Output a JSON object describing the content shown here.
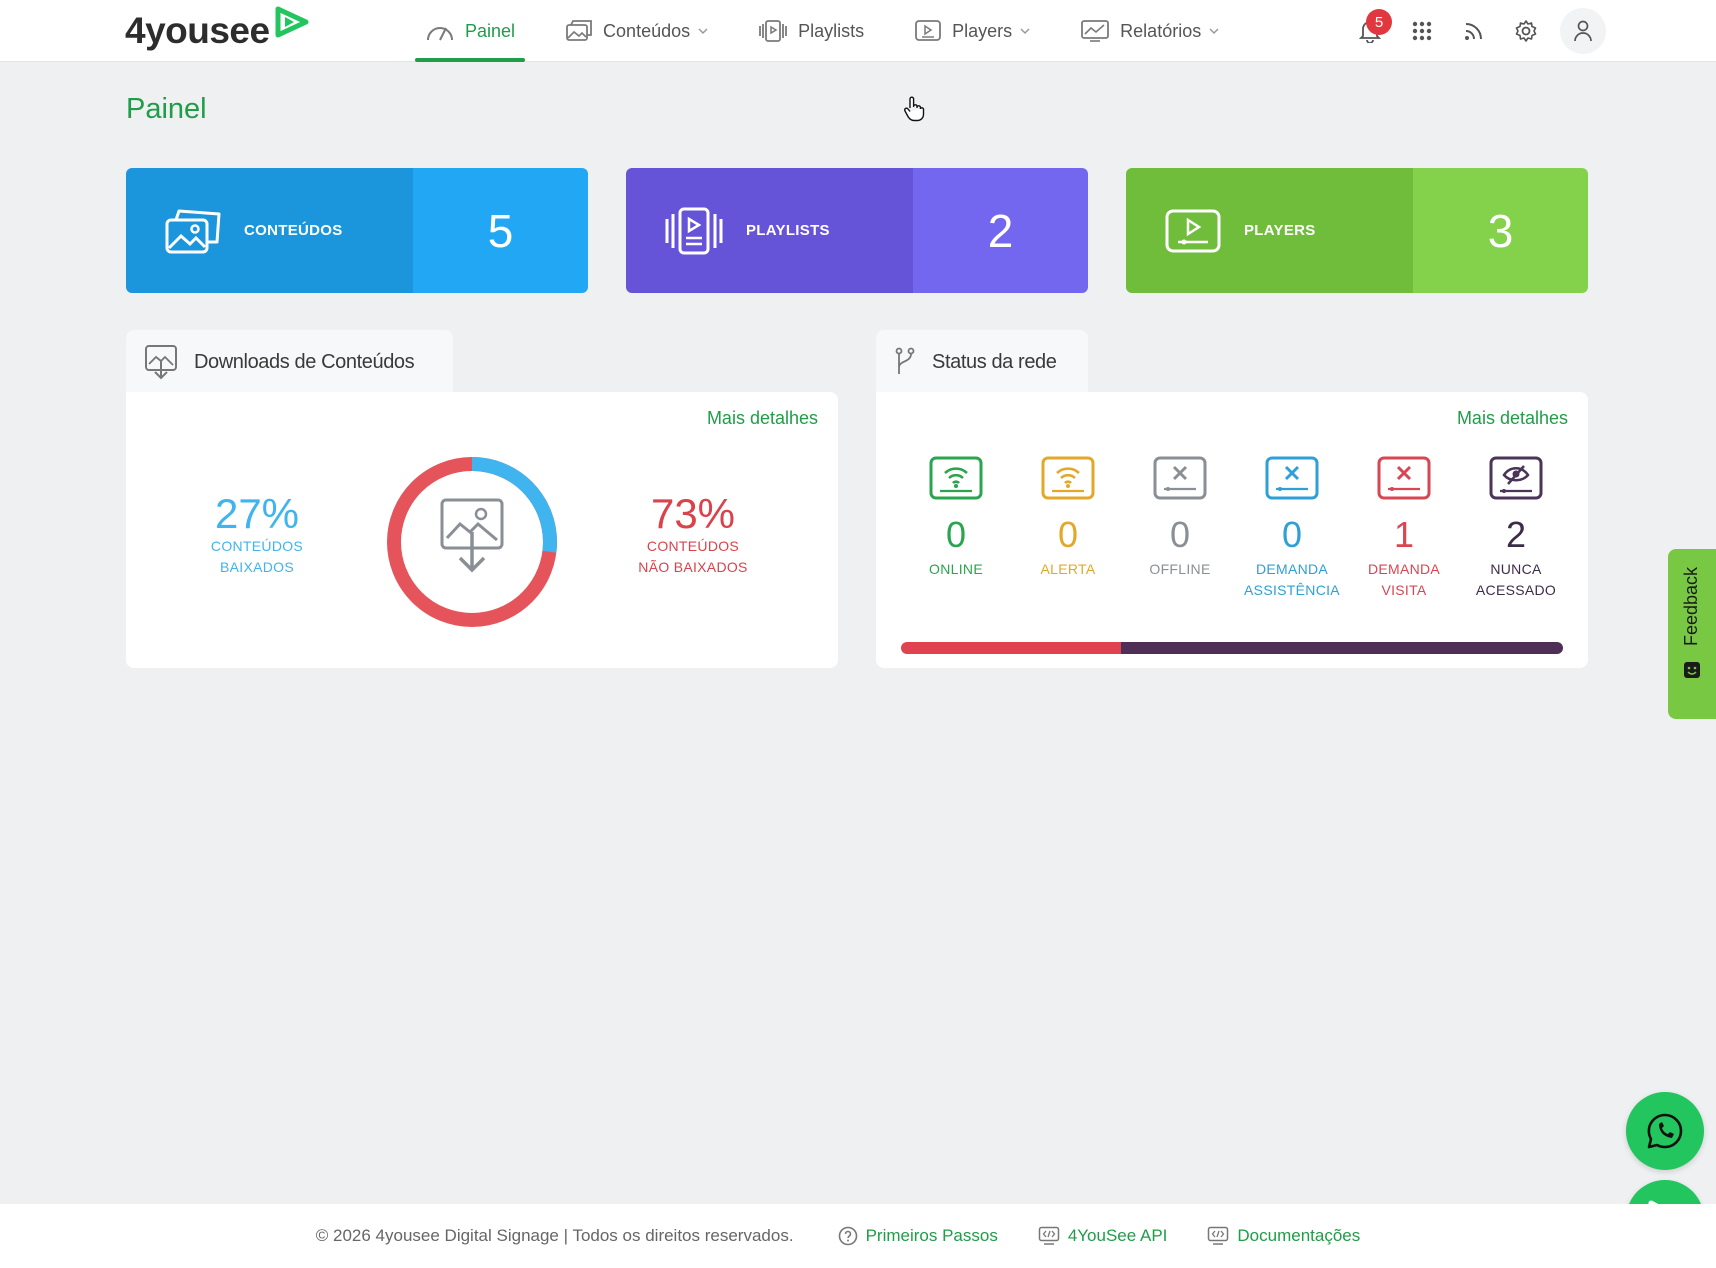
{
  "brand": {
    "name": "4yousee",
    "accent": "#1f9d48",
    "mark_color": "#22c55e"
  },
  "nav": {
    "items": [
      {
        "label": "Painel",
        "icon": "gauge-icon",
        "active": true
      },
      {
        "label": "Conteúdos",
        "icon": "images-icon",
        "dropdown": true
      },
      {
        "label": "Playlists",
        "icon": "playlist-icon",
        "dropdown": false
      },
      {
        "label": "Players",
        "icon": "player-icon",
        "dropdown": true
      },
      {
        "label": "Relatórios",
        "icon": "report-icon",
        "dropdown": true
      }
    ]
  },
  "toolbar": {
    "notifications_count": "5",
    "icons": [
      "bell-icon",
      "apps-grid-icon",
      "rss-icon",
      "gear-icon",
      "user-icon"
    ]
  },
  "page": {
    "title": "Painel"
  },
  "stats": [
    {
      "label": "CONTEÚDOS",
      "value": "5",
      "icon": "images-icon",
      "color_left": "#1b96dc",
      "color_right": "#22a7f5"
    },
    {
      "label": "PLAYLISTS",
      "value": "2",
      "icon": "playlist-icon",
      "color_left": "#6654d8",
      "color_right": "#7367f0"
    },
    {
      "label": "PLAYERS",
      "value": "3",
      "icon": "player-icon",
      "color_left": "#70bd3c",
      "color_right": "#84d24c"
    }
  ],
  "downloads": {
    "title": "Downloads de Conteúdos",
    "more": "Mais detalhes",
    "downloaded": {
      "percent": "27%",
      "line1": "CONTEÚDOS",
      "line2": "BAIXADOS",
      "fraction": 0.27,
      "color": "#3fb4ee"
    },
    "not_downloaded": {
      "percent": "73%",
      "line1": "CONTEÚDOS",
      "line2": "NÃO BAIXADOS",
      "fraction": 0.73,
      "color": "#e5545a"
    }
  },
  "network": {
    "title": "Status da rede",
    "more": "Mais detalhes",
    "statuses": [
      {
        "count": "0",
        "line1": "ONLINE",
        "line2": "",
        "color": "#2aa44f",
        "icon": "online-player-icon"
      },
      {
        "count": "0",
        "line1": "ALERTA",
        "line2": "",
        "color": "#e3a82a",
        "icon": "alert-player-icon"
      },
      {
        "count": "0",
        "line1": "OFFLINE",
        "line2": "",
        "color": "#8a8f95",
        "icon": "offline-player-icon"
      },
      {
        "count": "0",
        "line1": "DEMANDA",
        "line2": "ASSISTÊNCIA",
        "color": "#2f9fd8",
        "icon": "assistance-player-icon"
      },
      {
        "count": "1",
        "line1": "DEMANDA",
        "line2": "VISITA",
        "color": "#d84652",
        "icon": "visit-player-icon"
      },
      {
        "count": "2",
        "line1": "NUNCA",
        "line2": "ACESSADO",
        "color": "#4a3458",
        "icon": "never-accessed-player-icon"
      }
    ],
    "bar": [
      {
        "fraction": 0.333,
        "color": "#e0434f"
      },
      {
        "fraction": 0.667,
        "color": "#4f2f55"
      }
    ]
  },
  "feedback": {
    "label": "Feedback"
  },
  "footer": {
    "copyright": "© 2026 4yousee Digital Signage | Todos os direitos reservados.",
    "links": [
      {
        "label": "Primeiros Passos",
        "icon": "help-circle-icon"
      },
      {
        "label": "4YouSee API",
        "icon": "code-screen-icon"
      },
      {
        "label": "Documentações",
        "icon": "code-screen-icon"
      }
    ]
  }
}
